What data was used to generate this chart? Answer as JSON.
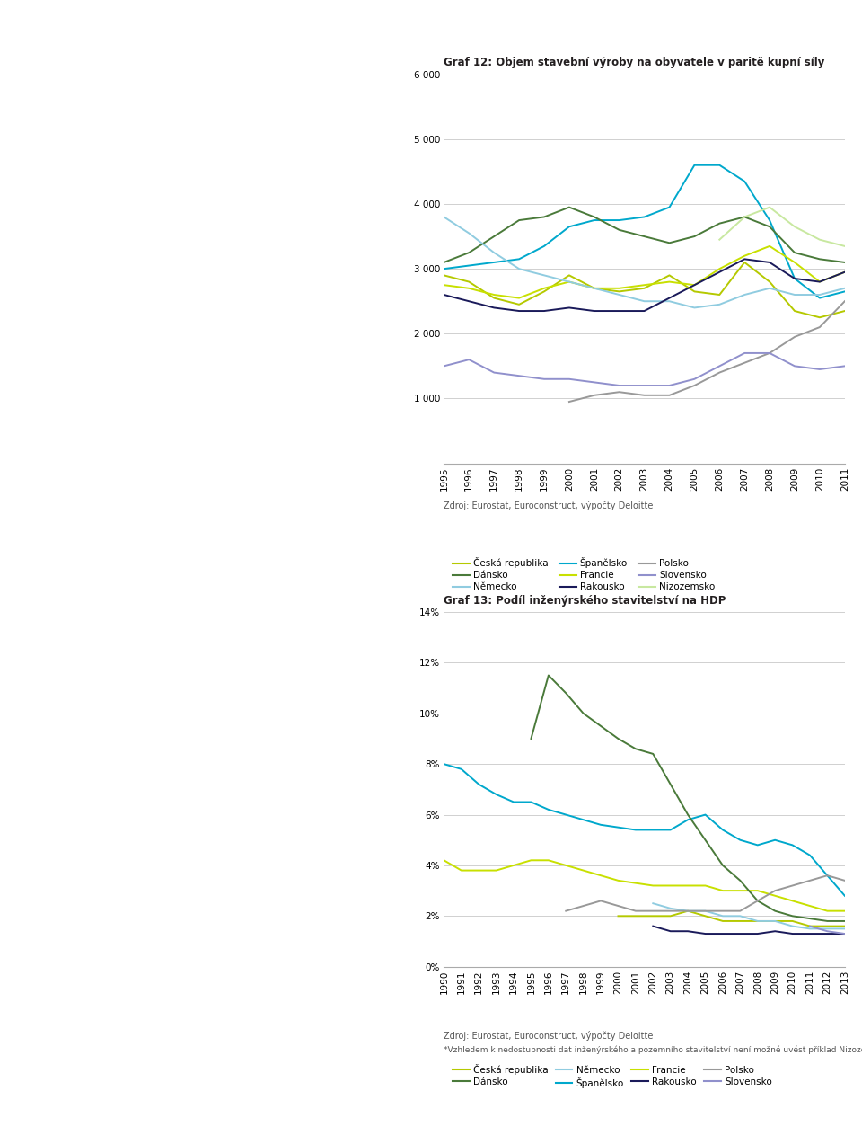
{
  "chart1": {
    "title": "Graf 12: Objem stavební výroby na obyvatele v paritě kupní síly",
    "years": [
      1995,
      1996,
      1997,
      1998,
      1999,
      2000,
      2001,
      2002,
      2003,
      2004,
      2005,
      2006,
      2007,
      2008,
      2009,
      2010,
      2011
    ],
    "ylim": [
      0,
      6000
    ],
    "yticks": [
      0,
      1000,
      2000,
      3000,
      4000,
      5000,
      6000
    ],
    "series": {
      "Česká republika": {
        "color": "#b5c900",
        "data": [
          2900,
          2800,
          2550,
          2450,
          2650,
          2900,
          2700,
          2650,
          2700,
          2900,
          2650,
          2600,
          3100,
          2800,
          2350,
          2250,
          2350
        ]
      },
      "Španělsko": {
        "color": "#00a8cc",
        "data": [
          3000,
          3050,
          3100,
          3150,
          3350,
          3650,
          3750,
          3750,
          3800,
          3950,
          4600,
          4600,
          4350,
          3750,
          2850,
          2550,
          2650
        ]
      },
      "Polsko": {
        "color": "#999999",
        "data": [
          null,
          null,
          null,
          null,
          null,
          950,
          1050,
          1100,
          1050,
          1050,
          1200,
          1400,
          1550,
          1700,
          1950,
          2100,
          2500
        ]
      },
      "Dánsko": {
        "color": "#4a7a3a",
        "data": [
          3100,
          3250,
          3500,
          3750,
          3800,
          3950,
          3800,
          3600,
          3500,
          3400,
          3500,
          3700,
          3800,
          3650,
          3250,
          3150,
          3100
        ]
      },
      "Francie": {
        "color": "#c8e000",
        "data": [
          2750,
          2700,
          2600,
          2550,
          2700,
          2800,
          2700,
          2700,
          2750,
          2800,
          2750,
          3000,
          3200,
          3350,
          3100,
          2800,
          2950
        ]
      },
      "Slovensko": {
        "color": "#9090cc",
        "data": [
          1500,
          1600,
          1400,
          1350,
          1300,
          1300,
          1250,
          1200,
          1200,
          1200,
          1300,
          1500,
          1700,
          1700,
          1500,
          1450,
          1500
        ]
      },
      "Německo": {
        "color": "#90cce0",
        "data": [
          3800,
          3550,
          3250,
          3000,
          2900,
          2800,
          2700,
          2600,
          2500,
          2500,
          2400,
          2450,
          2600,
          2700,
          2600,
          2600,
          2700
        ]
      },
      "Rakousko": {
        "color": "#1a1a5a",
        "data": [
          2600,
          2500,
          2400,
          2350,
          2350,
          2400,
          2350,
          2350,
          2350,
          2550,
          2750,
          2950,
          3150,
          3100,
          2850,
          2800,
          2950
        ]
      },
      "Nizozemsko": {
        "color": "#c8e8a0",
        "data": [
          null,
          null,
          null,
          null,
          null,
          null,
          null,
          null,
          null,
          null,
          null,
          3450,
          3800,
          3950,
          3650,
          3450,
          3350
        ]
      }
    },
    "legend_order": [
      [
        "Česká republika",
        "#b5c900"
      ],
      [
        "Dánsko",
        "#4a7a3a"
      ],
      [
        "Německo",
        "#90cce0"
      ],
      [
        "Španělsko",
        "#00a8cc"
      ],
      [
        "Francie",
        "#c8e000"
      ],
      [
        "Rakousko",
        "#1a1a5a"
      ],
      [
        "Polsko",
        "#999999"
      ],
      [
        "Slovensko",
        "#9090cc"
      ],
      [
        "Nizozemsko",
        "#c8e8a0"
      ]
    ],
    "source": "Zdroj: Eurostat, Euroconstruct, výpočty Deloitte"
  },
  "chart2": {
    "title": "Graf 13: Podíl inženýrského stavitelství na HDP",
    "years": [
      1990,
      1991,
      1992,
      1993,
      1994,
      1995,
      1996,
      1997,
      1998,
      1999,
      2000,
      2001,
      2002,
      2003,
      2004,
      2005,
      2006,
      2007,
      2008,
      2009,
      2010,
      2011,
      2012,
      2013
    ],
    "ylim": [
      0,
      0.14
    ],
    "yticks": [
      0,
      0.02,
      0.04,
      0.06,
      0.08,
      0.1,
      0.12,
      0.14
    ],
    "ytick_labels": [
      "0%",
      "2%",
      "4%",
      "6%",
      "8%",
      "10%",
      "12%",
      "14%"
    ],
    "series": {
      "Česká republika": {
        "color": "#b5c900",
        "data": [
          null,
          null,
          null,
          null,
          null,
          null,
          null,
          null,
          null,
          null,
          0.02,
          0.02,
          0.02,
          0.02,
          0.022,
          0.02,
          0.018,
          0.018,
          0.018,
          0.018,
          0.018,
          0.016,
          0.016,
          0.016
        ]
      },
      "Španělsko": {
        "color": "#00a8cc",
        "data": [
          0.08,
          0.078,
          0.072,
          0.068,
          0.065,
          0.065,
          0.062,
          0.06,
          0.058,
          0.056,
          0.055,
          0.054,
          0.054,
          0.054,
          0.058,
          0.06,
          0.054,
          0.05,
          0.048,
          0.05,
          0.048,
          0.044,
          0.036,
          0.028
        ]
      },
      "Francie": {
        "color": "#c8e000",
        "data": [
          0.042,
          0.038,
          0.038,
          0.038,
          0.04,
          0.042,
          0.042,
          0.04,
          0.038,
          0.036,
          0.034,
          0.033,
          0.032,
          0.032,
          0.032,
          0.032,
          0.03,
          0.03,
          0.03,
          0.028,
          0.026,
          0.024,
          0.022,
          0.022
        ]
      },
      "Dánsko": {
        "color": "#4a7a3a",
        "data": [
          null,
          null,
          null,
          null,
          null,
          0.09,
          0.115,
          0.108,
          0.1,
          0.095,
          0.09,
          0.086,
          0.084,
          0.072,
          0.06,
          0.05,
          0.04,
          0.034,
          0.026,
          0.022,
          0.02,
          0.019,
          0.018,
          0.018
        ]
      },
      "Německo": {
        "color": "#90cce0",
        "data": [
          null,
          null,
          null,
          null,
          null,
          null,
          null,
          null,
          null,
          null,
          null,
          null,
          0.025,
          0.023,
          0.022,
          0.022,
          0.02,
          0.02,
          0.018,
          0.018,
          0.016,
          0.015,
          0.015,
          0.015
        ]
      },
      "Rakousko": {
        "color": "#1a1a5a",
        "data": [
          null,
          null,
          null,
          null,
          null,
          null,
          null,
          null,
          null,
          null,
          null,
          null,
          0.016,
          0.014,
          0.014,
          0.013,
          0.013,
          0.013,
          0.013,
          0.014,
          0.013,
          0.013,
          0.013,
          0.013
        ]
      },
      "Polsko": {
        "color": "#999999",
        "data": [
          null,
          null,
          null,
          null,
          null,
          null,
          null,
          0.022,
          0.024,
          0.026,
          0.024,
          0.022,
          0.022,
          0.022,
          0.022,
          0.022,
          0.022,
          0.022,
          0.026,
          0.03,
          0.032,
          0.034,
          0.036,
          0.034
        ]
      },
      "Slovensko": {
        "color": "#9090cc",
        "data": [
          null,
          null,
          null,
          null,
          null,
          null,
          null,
          null,
          null,
          null,
          null,
          null,
          null,
          null,
          null,
          null,
          null,
          null,
          null,
          null,
          null,
          0.016,
          0.014,
          0.013
        ]
      }
    },
    "legend_order": [
      [
        "Česká republika",
        "#b5c900"
      ],
      [
        "Dánsko",
        "#4a7a3a"
      ],
      [
        "Německo",
        "#90cce0"
      ],
      [
        "Španělsko",
        "#00a8cc"
      ],
      [
        "Francie",
        "#c8e000"
      ],
      [
        "Rakousko",
        "#1a1a5a"
      ],
      [
        "Polsko",
        "#999999"
      ],
      [
        "Slovensko",
        "#9090cc"
      ]
    ],
    "source": "Zdroj: Eurostat, Euroconstruct, výpočty Deloitte",
    "footnote": "*Vzhledem k nedostupnosti dat inženýrského a pozemního stavitelství není možné uvést příklad Nizozemska"
  }
}
